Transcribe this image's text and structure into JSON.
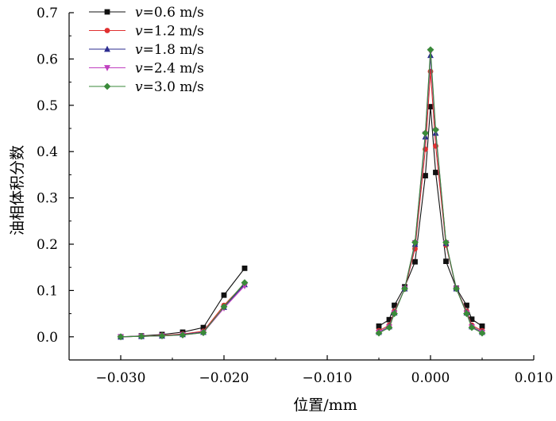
{
  "chart_data": {
    "type": "line",
    "xlabel": "位置/mm",
    "ylabel": "油相体积分数",
    "xlim": [
      -0.035,
      0.01
    ],
    "ylim": [
      -0.05,
      0.7
    ],
    "xticks": [
      -0.03,
      -0.02,
      -0.01,
      0.0,
      0.01
    ],
    "xtick_labels": [
      "−0.030",
      "−0.020",
      "−0.010",
      "0.000",
      "0.010"
    ],
    "yticks": [
      0.0,
      0.1,
      0.2,
      0.3,
      0.4,
      0.5,
      0.6,
      0.7
    ],
    "ytick_labels": [
      "0.0",
      "0.1",
      "0.2",
      "0.3",
      "0.4",
      "0.5",
      "0.6",
      "0.7"
    ],
    "grid": false,
    "legend_position": "top-left",
    "series": [
      {
        "name": "v=0.6 m/s",
        "name_var": "v",
        "name_rest": "=0.6 m/s",
        "color": "#111111",
        "marker": "square",
        "segments": [
          [
            [
              -0.03,
              0.0
            ],
            [
              -0.028,
              0.002
            ],
            [
              -0.026,
              0.005
            ],
            [
              -0.024,
              0.01
            ],
            [
              -0.022,
              0.02
            ],
            [
              -0.02,
              0.09
            ],
            [
              -0.018,
              0.148
            ]
          ],
          [
            [
              -0.005,
              0.023
            ],
            [
              -0.004,
              0.037
            ],
            [
              -0.0035,
              0.068
            ],
            [
              -0.0025,
              0.108
            ],
            [
              -0.0015,
              0.162
            ],
            [
              -0.0005,
              0.348
            ],
            [
              0.0,
              0.497
            ],
            [
              0.0005,
              0.355
            ],
            [
              0.0015,
              0.163
            ],
            [
              0.0025,
              0.105
            ],
            [
              0.0035,
              0.068
            ],
            [
              0.004,
              0.038
            ],
            [
              0.005,
              0.023
            ]
          ]
        ]
      },
      {
        "name": "v=1.2 m/s",
        "name_var": "v",
        "name_rest": "=1.2 m/s",
        "color": "#e03030",
        "marker": "circle",
        "segments": [
          [
            [
              -0.03,
              0.0
            ],
            [
              -0.028,
              0.001
            ],
            [
              -0.026,
              0.003
            ],
            [
              -0.024,
              0.006
            ],
            [
              -0.022,
              0.012
            ],
            [
              -0.02,
              0.068
            ],
            [
              -0.018,
              0.115
            ]
          ],
          [
            [
              -0.005,
              0.013
            ],
            [
              -0.004,
              0.025
            ],
            [
              -0.0035,
              0.055
            ],
            [
              -0.0025,
              0.103
            ],
            [
              -0.0015,
              0.19
            ],
            [
              -0.0005,
              0.405
            ],
            [
              0.0,
              0.573
            ],
            [
              0.0005,
              0.412
            ],
            [
              0.0015,
              0.198
            ],
            [
              0.0025,
              0.104
            ],
            [
              0.0035,
              0.055
            ],
            [
              0.004,
              0.025
            ],
            [
              0.005,
              0.013
            ]
          ]
        ]
      },
      {
        "name": "v=1.8 m/s",
        "name_var": "v",
        "name_rest": "=1.8 m/s",
        "color": "#2b2b8f",
        "marker": "triangle-up",
        "segments": [
          [
            [
              -0.03,
              0.0
            ],
            [
              -0.028,
              0.001
            ],
            [
              -0.026,
              0.002
            ],
            [
              -0.024,
              0.005
            ],
            [
              -0.022,
              0.01
            ],
            [
              -0.02,
              0.064
            ],
            [
              -0.018,
              0.113
            ]
          ],
          [
            [
              -0.005,
              0.01
            ],
            [
              -0.004,
              0.022
            ],
            [
              -0.0035,
              0.052
            ],
            [
              -0.0025,
              0.104
            ],
            [
              -0.0015,
              0.2
            ],
            [
              -0.0005,
              0.432
            ],
            [
              0.0,
              0.608
            ],
            [
              0.0005,
              0.44
            ],
            [
              0.0015,
              0.202
            ],
            [
              0.0025,
              0.104
            ],
            [
              0.0035,
              0.052
            ],
            [
              0.004,
              0.022
            ],
            [
              0.005,
              0.01
            ]
          ]
        ]
      },
      {
        "name": "v=2.4 m/s",
        "name_var": "v",
        "name_rest": "=2.4 m/s",
        "color": "#c040c0",
        "marker": "triangle-down",
        "segments": [
          [
            [
              -0.03,
              0.0
            ],
            [
              -0.028,
              0.001
            ],
            [
              -0.026,
              0.002
            ],
            [
              -0.024,
              0.004
            ],
            [
              -0.022,
              0.009
            ],
            [
              -0.02,
              0.062
            ],
            [
              -0.018,
              0.11
            ]
          ],
          [
            [
              -0.005,
              0.009
            ],
            [
              -0.004,
              0.021
            ],
            [
              -0.0035,
              0.051
            ],
            [
              -0.0025,
              0.104
            ],
            [
              -0.0015,
              0.203
            ],
            [
              -0.0005,
              0.438
            ],
            [
              0.0,
              0.616
            ],
            [
              0.0005,
              0.445
            ],
            [
              0.0015,
              0.203
            ],
            [
              0.0025,
              0.104
            ],
            [
              0.0035,
              0.051
            ],
            [
              0.004,
              0.021
            ],
            [
              0.005,
              0.009
            ]
          ]
        ]
      },
      {
        "name": "v=3.0 m/s",
        "name_var": "v",
        "name_rest": "=3.0 m/s",
        "color": "#3a8a3a",
        "marker": "diamond",
        "segments": [
          [
            [
              -0.03,
              0.0
            ],
            [
              -0.028,
              0.001
            ],
            [
              -0.026,
              0.002
            ],
            [
              -0.024,
              0.004
            ],
            [
              -0.022,
              0.009
            ],
            [
              -0.02,
              0.065
            ],
            [
              -0.018,
              0.117
            ]
          ],
          [
            [
              -0.005,
              0.008
            ],
            [
              -0.004,
              0.02
            ],
            [
              -0.0035,
              0.05
            ],
            [
              -0.0025,
              0.104
            ],
            [
              -0.0015,
              0.204
            ],
            [
              -0.0005,
              0.44
            ],
            [
              0.0,
              0.62
            ],
            [
              0.0005,
              0.447
            ],
            [
              0.0015,
              0.204
            ],
            [
              0.0025,
              0.104
            ],
            [
              0.0035,
              0.05
            ],
            [
              0.004,
              0.02
            ],
            [
              0.005,
              0.008
            ]
          ]
        ]
      }
    ]
  }
}
